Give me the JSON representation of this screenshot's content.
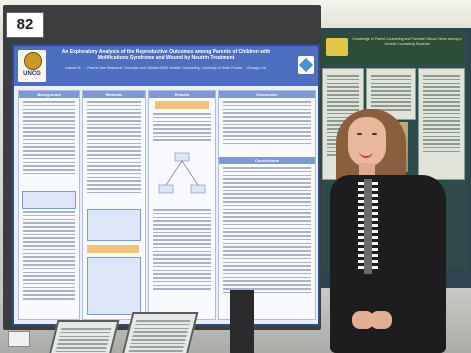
{
  "board": {
    "number_tag": "82"
  },
  "poster": {
    "title": "An Exploratory Analysis of the Reproductive Outcomes among Parents of Children with Mofifications Syndrome and Wound by Neutrin Treatment",
    "authors": "Leanne M. ..., Parent Care Research, Grounds Louis Stokes MSW\nGenetic Counseling, University of North Florida..., Chicago, Inc.",
    "logo_text": "UNCG",
    "sections": [
      "Background",
      "Methods",
      "Results",
      "Discussion",
      "Conclusions"
    ]
  },
  "poster2": {
    "title": "Knowledge of Parent Counseling and Parental Clinical Views among a Genetic Counseling Students"
  },
  "colors": {
    "poster_header": "#4e6fbf",
    "poster_bg": "#e9eef7",
    "poster2_bg": "#2f4a4a",
    "board": "#3c3d3f"
  }
}
